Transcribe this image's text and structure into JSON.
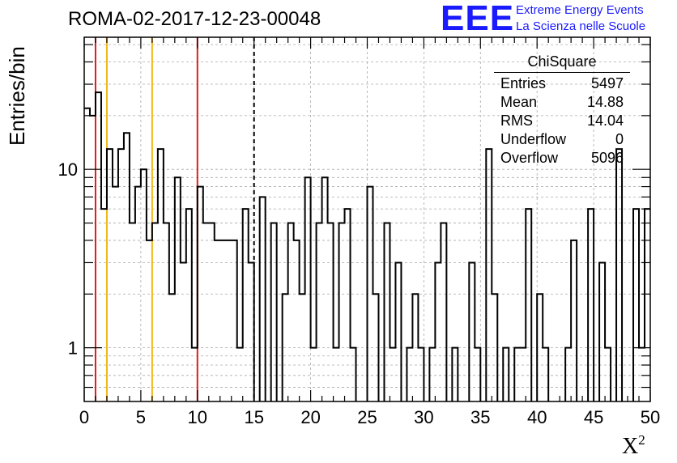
{
  "title": "ROMA-02-2017-12-23-00048",
  "logo": {
    "mark": "EEE",
    "line1": "Extreme Energy Events",
    "line2": "La Scienza nelle Scuole",
    "color": "#1a1aff"
  },
  "stats": {
    "name": "ChiSquare",
    "rows": [
      {
        "label": "Entries",
        "value": "5497"
      },
      {
        "label": "Mean",
        "value": "14.88"
      },
      {
        "label": "RMS",
        "value": "14.04"
      },
      {
        "label": "Underflow",
        "value": "0"
      },
      {
        "label": "Overflow",
        "value": "5096"
      }
    ]
  },
  "chart_data": {
    "type": "bar",
    "style": "step-histogram",
    "title": "ROMA-02-2017-12-23-00048",
    "xlabel": "X",
    "xlabel_superscript": "2",
    "ylabel": "Entries/bin",
    "xlim": [
      0,
      50
    ],
    "ylim": [
      0.5,
      55
    ],
    "yscale": "log",
    "grid": true,
    "bin_width": 0.5,
    "x_ticks": [
      "0",
      "5",
      "10",
      "15",
      "20",
      "25",
      "30",
      "35",
      "40",
      "45",
      "50"
    ],
    "y_ticks": [
      "1",
      "10"
    ],
    "values": [
      22,
      20,
      27,
      6,
      13,
      8,
      13,
      16,
      5,
      8,
      10,
      4,
      5,
      13,
      5,
      2,
      9,
      3,
      6,
      1,
      8,
      5,
      5,
      4,
      4,
      4,
      4,
      1,
      6,
      3,
      0,
      7,
      0,
      5,
      0,
      2,
      5,
      4,
      2,
      9,
      1,
      5,
      9,
      5,
      1,
      5,
      6,
      1,
      0,
      0,
      8,
      2,
      0,
      5,
      1,
      3,
      0,
      1,
      2,
      1,
      0,
      1,
      3,
      5,
      0,
      1,
      0,
      0,
      3,
      1,
      0,
      13,
      2,
      0,
      1,
      0,
      1,
      1,
      6,
      0,
      2,
      1,
      0,
      0,
      0,
      1,
      4,
      0,
      0,
      6,
      0,
      3,
      1,
      0,
      13,
      0,
      0,
      6,
      1,
      6
    ],
    "vertical_lines": [
      {
        "x": 1,
        "color": "#dd1f1f",
        "style": "solid"
      },
      {
        "x": 2,
        "color": "#f0b81a",
        "style": "solid"
      },
      {
        "x": 6,
        "color": "#f0b81a",
        "style": "solid"
      },
      {
        "x": 10,
        "color": "#dd1f1f",
        "style": "solid"
      },
      {
        "x": 15,
        "color": "#000000",
        "style": "dashed"
      }
    ]
  }
}
